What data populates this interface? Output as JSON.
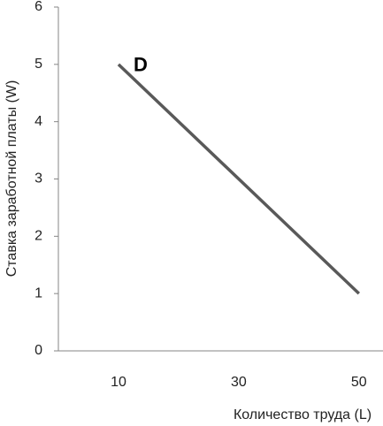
{
  "chart_data": {
    "type": "line",
    "x_label": "Количество труда (L)",
    "y_label": "Ставка заработной платы (W)",
    "annotation": "D",
    "x": [
      10,
      50
    ],
    "series": [
      {
        "color": "#595959",
        "values": [
          5,
          1
        ]
      }
    ],
    "xlim": [
      0,
      54
    ],
    "xticks": [
      10,
      30,
      50
    ],
    "ylim": [
      0,
      6
    ],
    "yticks": [
      0,
      1,
      2,
      3,
      4,
      5,
      6
    ],
    "grid": false
  }
}
